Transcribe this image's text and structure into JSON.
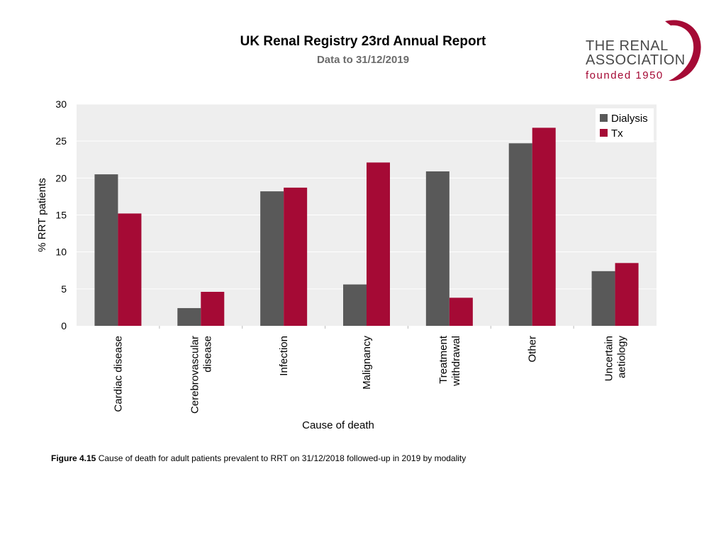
{
  "header": {
    "title": "UK Renal Registry 23rd Annual Report",
    "subtitle": "Data to 31/12/2019"
  },
  "logo": {
    "line1": "THE RENAL",
    "line2": "ASSOCIATION",
    "line3": "founded 1950"
  },
  "caption": {
    "label": "Figure 4.15",
    "text": "Cause of death for adult patients prevalent to RRT on 31/12/2018 followed-up in 2019 by modality"
  },
  "colors": {
    "dialysis": "#595959",
    "tx": "#a50a35",
    "plot_bg": "#eeeeee",
    "gridline": "#ffffff"
  },
  "chart_data": {
    "type": "bar",
    "title": "",
    "xlabel": "Cause of death",
    "ylabel": "% RRT patients",
    "ylim": [
      0,
      30
    ],
    "yticks": [
      0,
      5,
      10,
      15,
      20,
      25,
      30
    ],
    "grid": true,
    "legend_position": "top-right",
    "categories": [
      [
        "Cardiac disease"
      ],
      [
        "Cerebrovascular",
        "disease"
      ],
      [
        "Infection"
      ],
      [
        "Malignancy"
      ],
      [
        "Treatment",
        "withdrawal"
      ],
      [
        "Other"
      ],
      [
        "Uncertain",
        "aetiology"
      ]
    ],
    "series": [
      {
        "name": "Dialysis",
        "values": [
          20.5,
          2.4,
          18.2,
          5.6,
          20.9,
          24.7,
          7.4
        ]
      },
      {
        "name": "Tx",
        "values": [
          15.2,
          4.6,
          18.7,
          22.1,
          3.8,
          26.8,
          8.5
        ]
      }
    ]
  }
}
